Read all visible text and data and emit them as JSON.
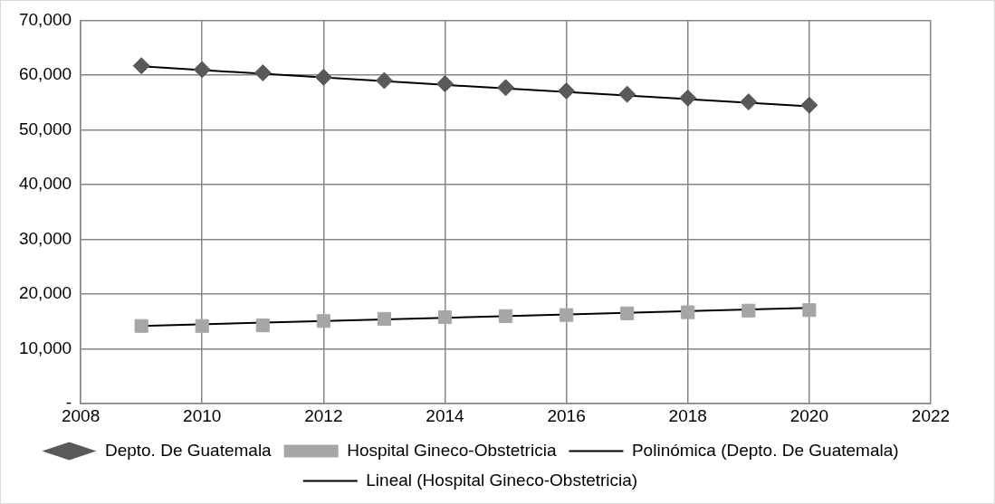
{
  "chart_data": {
    "type": "scatter",
    "xlim": [
      2008,
      2022
    ],
    "xticks": [
      2008,
      2010,
      2012,
      2014,
      2016,
      2018,
      2020,
      2022
    ],
    "ylim": [
      0,
      70000
    ],
    "yticks": [
      {
        "value": 0,
        "label": "-"
      },
      {
        "value": 10000,
        "label": "10,000"
      },
      {
        "value": 20000,
        "label": "20,000"
      },
      {
        "value": 30000,
        "label": "30,000"
      },
      {
        "value": 40000,
        "label": "40,000"
      },
      {
        "value": 50000,
        "label": "50,000"
      },
      {
        "value": 60000,
        "label": "60,000"
      },
      {
        "value": 70000,
        "label": "70,000"
      }
    ],
    "grid": true,
    "legend": "bottom",
    "series": [
      {
        "name": "Depto. De Guatemala",
        "marker": "diamond",
        "color": "#595959",
        "x": [
          2009,
          2010,
          2011,
          2012,
          2013,
          2014,
          2015,
          2016,
          2017,
          2018,
          2019,
          2020
        ],
        "values": [
          61700,
          61000,
          60400,
          59600,
          59000,
          58400,
          57700,
          57100,
          56500,
          55800,
          55100,
          54500
        ]
      },
      {
        "name": "Hospital Gineco-Obstetricia",
        "marker": "square",
        "color": "#a6a6a6",
        "x": [
          2009,
          2010,
          2011,
          2012,
          2013,
          2014,
          2015,
          2016,
          2017,
          2018,
          2019,
          2020
        ],
        "values": [
          14200,
          14200,
          14300,
          15100,
          15500,
          15800,
          16000,
          16200,
          16500,
          16700,
          17000,
          17100
        ]
      },
      {
        "name": "Polinómica (Depto. De Guatemala)",
        "type": "line",
        "marker": "none",
        "color": "#000000",
        "x": [
          2009,
          2014,
          2020
        ],
        "values": [
          61600,
          58200,
          54300
        ]
      },
      {
        "name": "Lineal (Hospital Gineco-Obstetricia)",
        "type": "line",
        "marker": "none",
        "color": "#000000",
        "x": [
          2009,
          2020
        ],
        "values": [
          14200,
          17500
        ]
      }
    ]
  }
}
